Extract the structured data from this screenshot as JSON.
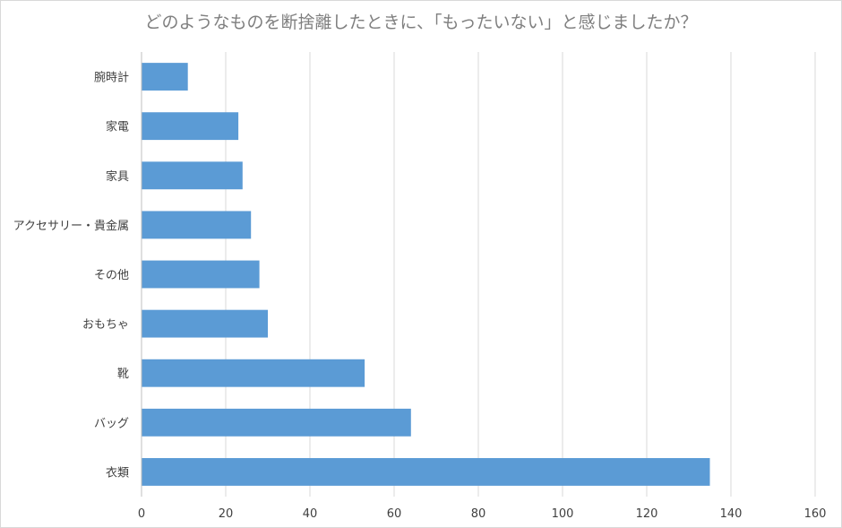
{
  "chart_data": {
    "type": "bar",
    "orientation": "horizontal",
    "title": "どのようなものを断捨離したときに、「もったいない」と感じましたか？",
    "categories": [
      "腕時計",
      "家電",
      "家具",
      "アクセサリー・貴金属",
      "その他",
      "おもちゃ",
      "靴",
      "バッグ",
      "衣類"
    ],
    "values": [
      11,
      23,
      24,
      26,
      28,
      30,
      53,
      64,
      135
    ],
    "xlim": [
      0,
      160
    ],
    "xticks": [
      0,
      20,
      40,
      60,
      80,
      100,
      120,
      140,
      160
    ],
    "grid": "vertical",
    "bar_color": "#5b9bd5",
    "legend": "none"
  }
}
